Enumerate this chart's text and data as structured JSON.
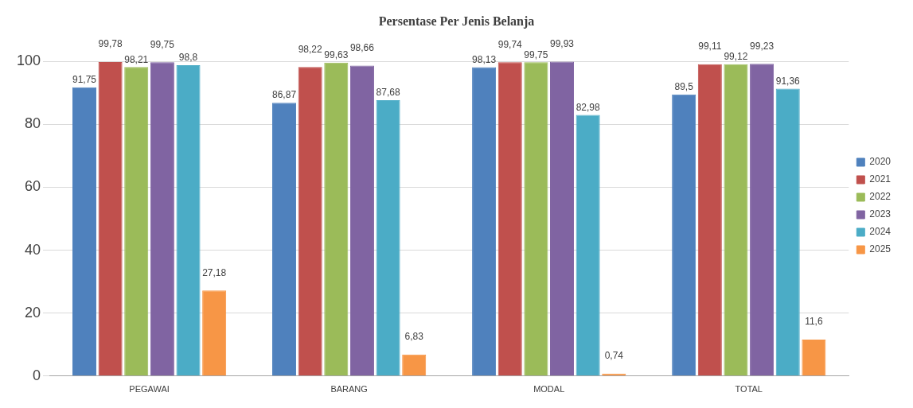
{
  "chart_data": {
    "type": "bar",
    "title": "Persentase Per Jenis Belanja",
    "categories": [
      "PEGAWAI",
      "BARANG",
      "MODAL",
      "TOTAL"
    ],
    "series": [
      {
        "name": "2020",
        "color": "#4f81bd",
        "values": [
          91.75,
          86.87,
          98.13,
          89.5
        ],
        "value_labels": [
          "91,75",
          "86,87",
          "98,13",
          "89,5"
        ]
      },
      {
        "name": "2021",
        "color": "#c0504d",
        "values": [
          99.78,
          98.22,
          99.74,
          99.11
        ],
        "value_labels": [
          "99,78",
          "98,22",
          "99,74",
          "99,11"
        ]
      },
      {
        "name": "2022",
        "color": "#9bbb59",
        "values": [
          98.21,
          99.63,
          99.75,
          99.12
        ],
        "value_labels": [
          "98,21",
          "99,63",
          "99,75",
          "99,12"
        ]
      },
      {
        "name": "2023",
        "color": "#8064a2",
        "values": [
          99.75,
          98.66,
          99.93,
          99.23
        ],
        "value_labels": [
          "99,75",
          "98,66",
          "99,93",
          "99,23"
        ]
      },
      {
        "name": "2024",
        "color": "#4bacc6",
        "values": [
          98.8,
          87.68,
          82.98,
          91.36
        ],
        "value_labels": [
          "98,8",
          "87,68",
          "82,98",
          "91,36"
        ]
      },
      {
        "name": "2025",
        "color": "#f79646",
        "values": [
          27.18,
          6.83,
          0.74,
          11.6
        ],
        "value_labels": [
          "27,18",
          "6,83",
          "0,74",
          "11,6"
        ]
      }
    ],
    "ylim": [
      0,
      100
    ],
    "yticks": [
      0,
      20,
      40,
      60,
      80,
      100
    ],
    "grid": "y",
    "legend": "right"
  }
}
